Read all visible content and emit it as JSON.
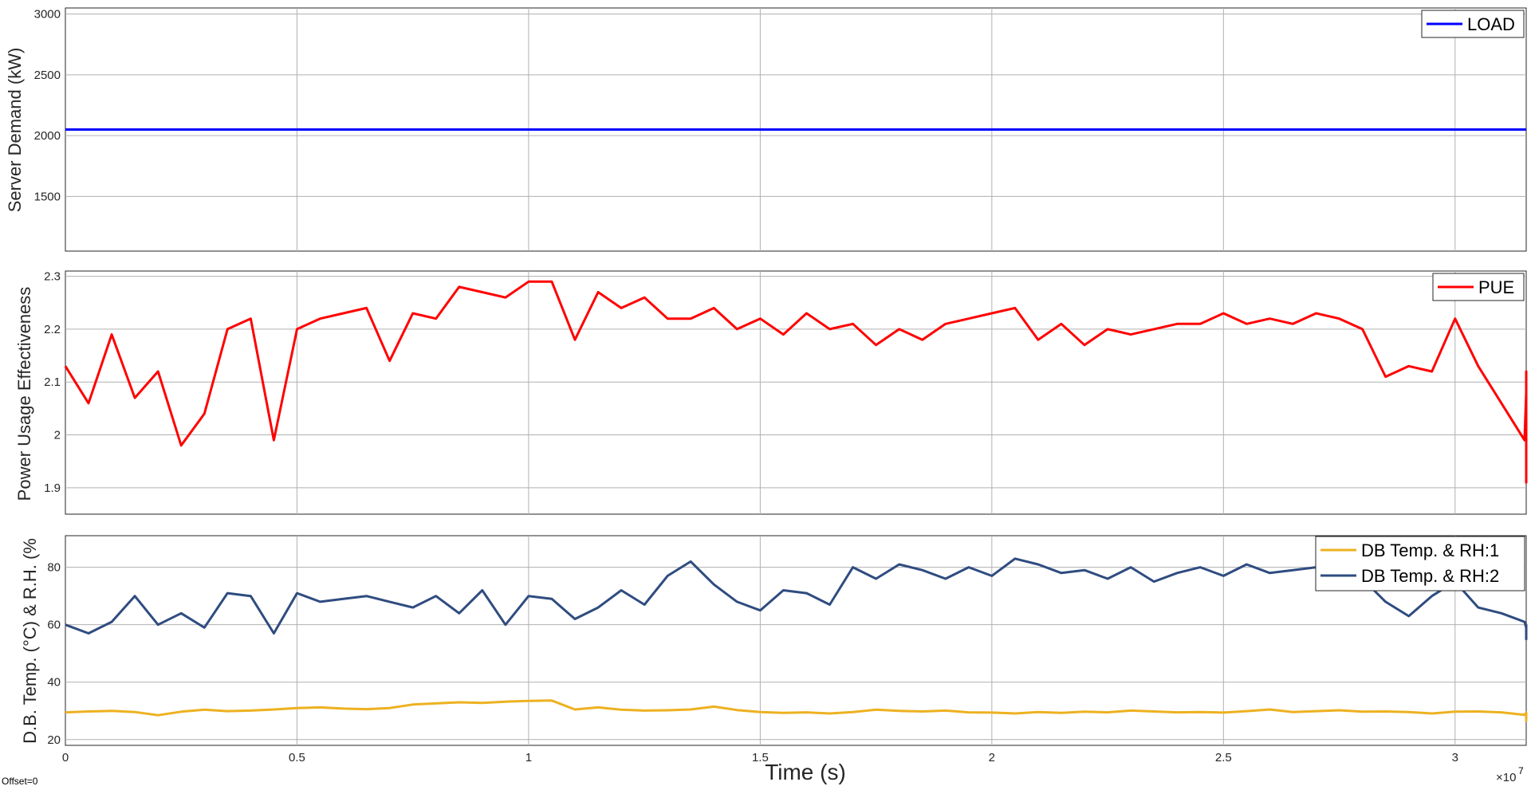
{
  "footer": {
    "offset_label": "Offset=0",
    "xlabel": "Time (s)",
    "exponent": "×10",
    "exponent_power": "7"
  },
  "chart_data": [
    {
      "type": "line",
      "ylabel": "Server Demand (kW)",
      "xlim": [
        0,
        31536000
      ],
      "ylim": [
        1050,
        3050
      ],
      "yticks": [
        1500,
        2000,
        2500,
        3000
      ],
      "grid": true,
      "legend_position": "top-right",
      "series": [
        {
          "name": "LOAD",
          "color": "#0000FF",
          "kind": "constant",
          "value": 2050
        }
      ]
    },
    {
      "type": "line",
      "ylabel": "Power Usage Effectiveness",
      "xlim": [
        0,
        31536000
      ],
      "ylim": [
        1.85,
        2.31
      ],
      "yticks": [
        1.9,
        2.0,
        2.1,
        2.2,
        2.3
      ],
      "ytick_labels": [
        "1.9",
        "2",
        "2.1",
        "2.2",
        "2.3"
      ],
      "grid": true,
      "legend_position": "top-right",
      "series": [
        {
          "name": "PUE",
          "color": "#FF0000",
          "x_step": 500000,
          "values": [
            2.13,
            2.06,
            2.19,
            2.07,
            2.12,
            1.98,
            2.04,
            2.2,
            2.22,
            1.99,
            2.2,
            2.22,
            2.23,
            2.24,
            2.14,
            2.23,
            2.22,
            2.28,
            2.27,
            2.26,
            2.29,
            2.29,
            2.18,
            2.27,
            2.24,
            2.26,
            2.22,
            2.22,
            2.24,
            2.2,
            2.22,
            2.19,
            2.23,
            2.2,
            2.21,
            2.17,
            2.2,
            2.18,
            2.21,
            2.22,
            2.23,
            2.24,
            2.18,
            2.21,
            2.17,
            2.2,
            2.19,
            2.2,
            2.21,
            2.21,
            2.23,
            2.21,
            2.22,
            2.21,
            2.23,
            2.22,
            2.2,
            2.11,
            2.13,
            2.12,
            2.22,
            2.13,
            2.06,
            1.99,
            2.08,
            2.12,
            1.97,
            1.91,
            1.96
          ],
          "x_start": 0
        }
      ]
    },
    {
      "type": "line",
      "ylabel": "D.B. Temp. (°C) & R.H. (%",
      "xlim": [
        0,
        31536000
      ],
      "ylim": [
        18,
        91
      ],
      "yticks": [
        20,
        40,
        60,
        80
      ],
      "xticks": [
        0,
        5000000,
        10000000,
        15000000,
        20000000,
        25000000,
        30000000
      ],
      "xtick_labels": [
        "0",
        "0.5",
        "1",
        "1.5",
        "2",
        "2.5",
        "3"
      ],
      "grid": true,
      "legend_position": "top-right",
      "series": [
        {
          "name": "DB Temp. & RH:1",
          "color": "#EDB120",
          "x_step": 500000,
          "x_start": 0,
          "values": [
            29.5,
            29.8,
            30.0,
            29.6,
            28.5,
            29.7,
            30.4,
            29.9,
            30.1,
            30.5,
            31.0,
            31.2,
            30.8,
            30.6,
            31.0,
            32.2,
            32.6,
            33.0,
            32.8,
            33.2,
            33.5,
            33.6,
            30.5,
            31.2,
            30.4,
            30.1,
            30.2,
            30.5,
            31.5,
            30.3,
            29.6,
            29.3,
            29.5,
            29.1,
            29.6,
            30.4,
            30.0,
            29.8,
            30.1,
            29.5,
            29.4,
            29.1,
            29.6,
            29.3,
            29.7,
            29.5,
            30.1,
            29.8,
            29.5,
            29.6,
            29.4,
            29.9,
            30.5,
            29.6,
            29.9,
            30.2,
            29.7,
            29.8,
            29.6,
            29.1,
            29.7,
            29.8,
            29.5,
            28.6,
            29.4,
            28.9,
            27.6,
            26.6,
            27.8
          ]
        },
        {
          "name": "DB Temp. & RH:2",
          "color": "#2F4C80",
          "x_step": 500000,
          "x_start": 0,
          "values": [
            60,
            57,
            61,
            70,
            60,
            64,
            59,
            71,
            70,
            57,
            71,
            68,
            69,
            70,
            68,
            66,
            70,
            64,
            72,
            60,
            70,
            69,
            62,
            66,
            72,
            67,
            77,
            82,
            74,
            68,
            65,
            72,
            71,
            67,
            80,
            76,
            81,
            79,
            76,
            80,
            77,
            83,
            81,
            78,
            79,
            76,
            80,
            75,
            78,
            80,
            77,
            81,
            78,
            79,
            80,
            82,
            76,
            68,
            63,
            70,
            75,
            66,
            64,
            61,
            59,
            58,
            60,
            55,
            57
          ]
        }
      ]
    }
  ]
}
